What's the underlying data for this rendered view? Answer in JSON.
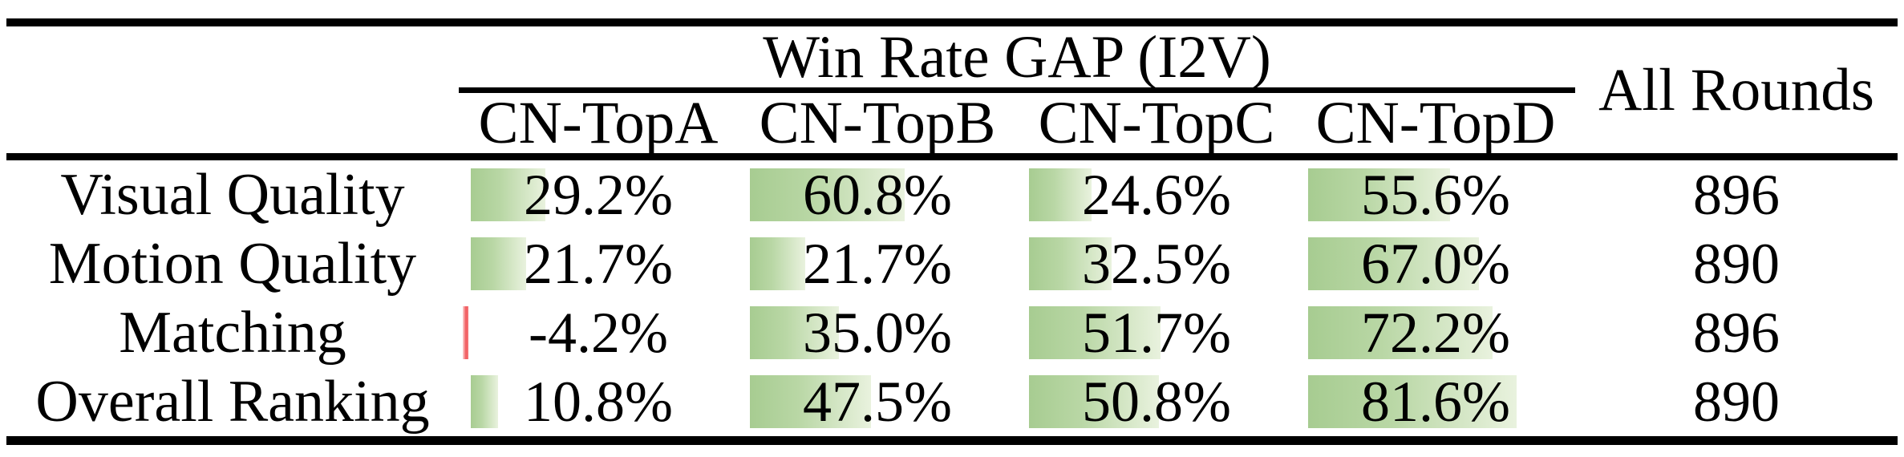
{
  "table": {
    "group_header": "Win Rate GAP (I2V)",
    "all_rounds_header": "All Rounds",
    "columns": [
      "CN-TopA",
      "CN-TopB",
      "CN-TopC",
      "CN-TopD"
    ],
    "rows": [
      {
        "label": "Visual Quality",
        "values": [
          "29.2%",
          "60.8%",
          "24.6%",
          "55.6%"
        ],
        "all_rounds": "896"
      },
      {
        "label": "Motion Quality",
        "values": [
          "21.7%",
          "21.7%",
          "32.5%",
          "67.0%"
        ],
        "all_rounds": "890"
      },
      {
        "label": "Matching",
        "values": [
          "-4.2%",
          "35.0%",
          "51.7%",
          "72.2%"
        ],
        "all_rounds": "896"
      },
      {
        "label": "Overall Ranking",
        "values": [
          "10.8%",
          "47.5%",
          "50.8%",
          "81.6%"
        ],
        "all_rounds": "890"
      }
    ],
    "colors": {
      "positive_bar_start": "#a7cc91",
      "positive_bar_end": "#e9f2de",
      "negative_bar": "#f15a5e",
      "rule": "#000000"
    }
  },
  "chart_data": {
    "type": "table",
    "title": "Win Rate GAP (I2V)",
    "columns": [
      "CN-TopA",
      "CN-TopB",
      "CN-TopC",
      "CN-TopD",
      "All Rounds"
    ],
    "rows": [
      {
        "label": "Visual Quality",
        "win_rate_gap_pct": [
          29.2,
          60.8,
          24.6,
          55.6
        ],
        "all_rounds": 896
      },
      {
        "label": "Motion Quality",
        "win_rate_gap_pct": [
          21.7,
          21.7,
          32.5,
          67.0
        ],
        "all_rounds": 890
      },
      {
        "label": "Matching",
        "win_rate_gap_pct": [
          -4.2,
          35.0,
          51.7,
          72.2
        ],
        "all_rounds": 896
      },
      {
        "label": "Overall Ranking",
        "win_rate_gap_pct": [
          10.8,
          47.5,
          50.8,
          81.6
        ],
        "all_rounds": 890
      }
    ],
    "bar_style": "in-cell gradient data bars, length proportional to percent of cell width, green positive, thin red negative",
    "layout": "bars left-aligned in cell, value text centered over bar"
  }
}
